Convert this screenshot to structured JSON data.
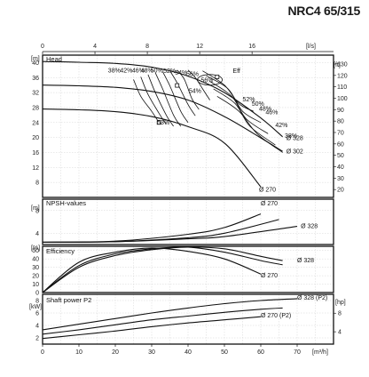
{
  "header": {
    "model": "NRC4 65/315"
  },
  "chart_data": [
    {
      "type": "line",
      "title": "Head",
      "unit_left": "[m]",
      "unit_right": "[ft]",
      "top_axis": {
        "unit": "[l/s]",
        "ticks": [
          "0",
          "4",
          "8",
          "12",
          "16"
        ]
      },
      "ylim": [
        4,
        42
      ],
      "yticks": [
        8,
        12,
        16,
        20,
        24,
        28,
        32,
        36,
        40
      ],
      "ft_ticks": [
        20,
        30,
        40,
        50,
        60,
        70,
        80,
        90,
        100,
        110,
        120,
        130
      ],
      "series": [
        {
          "name": "Ø 328",
          "x": [
            0,
            10,
            20,
            30,
            40,
            50,
            60,
            66
          ],
          "y": [
            40.3,
            40.1,
            39.8,
            38.8,
            36.4,
            32.0,
            25.2,
            20.2
          ]
        },
        {
          "name": "Ø 302",
          "x": [
            0,
            10,
            20,
            30,
            40,
            50,
            60,
            66
          ],
          "y": [
            34.0,
            33.8,
            33.4,
            32.3,
            30.0,
            25.6,
            19.9,
            16.3
          ]
        },
        {
          "name": "Ø 270",
          "x": [
            0,
            10,
            20,
            30,
            40,
            50,
            60
          ],
          "y": [
            27.6,
            27.4,
            26.9,
            25.6,
            22.9,
            18.5,
            6.8
          ]
        }
      ],
      "labels": {
        "eff": "Eff",
        "d328": "Ø 328",
        "d302": "Ø 302",
        "d270": "Ø 270",
        "eff_pct": [
          "38%",
          "42%",
          "46%",
          "48%",
          "50%",
          "52%",
          "54%",
          "56%",
          "56%",
          "54%",
          "53%",
          "52%",
          "50%",
          "48%",
          "46%",
          "42%",
          "38%"
        ]
      }
    },
    {
      "type": "line",
      "title": "NPSH-values",
      "unit": "[m]",
      "ylim": [
        2,
        10
      ],
      "yticks": [
        4,
        8
      ],
      "series": [
        {
          "name": "Ø 270",
          "x": [
            0,
            20,
            40,
            50,
            60
          ],
          "y": [
            2.4,
            2.6,
            3.8,
            5.0,
            7.4
          ]
        },
        {
          "name": "Ø 302",
          "x": [
            0,
            20,
            40,
            50,
            65
          ],
          "y": [
            2.4,
            2.5,
            3.2,
            4.0,
            6.4
          ]
        },
        {
          "name": "Ø 328",
          "x": [
            0,
            20,
            40,
            50,
            70
          ],
          "y": [
            2.4,
            2.5,
            3.0,
            3.4,
            5.2
          ]
        }
      ],
      "labels": {
        "d270": "Ø 270",
        "d328": "Ø 328"
      }
    },
    {
      "type": "line",
      "title": "Efficiency",
      "unit": "[%]",
      "ylim": [
        0,
        55
      ],
      "yticks": [
        0,
        10,
        20,
        30,
        40,
        50
      ],
      "series": [
        {
          "name": "Ø 328",
          "x": [
            0,
            10,
            20,
            30,
            40,
            50,
            60,
            66
          ],
          "y": [
            0,
            30,
            44,
            51,
            54,
            52,
            43,
            38
          ]
        },
        {
          "name": "Ø 302",
          "x": [
            0,
            10,
            20,
            30,
            40,
            50,
            60,
            66
          ],
          "y": [
            0,
            32,
            46,
            52,
            54,
            48,
            38,
            33
          ]
        },
        {
          "name": "Ø 270",
          "x": [
            0,
            10,
            20,
            30,
            40,
            50,
            60
          ],
          "y": [
            0,
            36,
            48,
            53,
            49,
            40,
            22
          ]
        }
      ],
      "labels": {
        "d328": "Ø 328",
        "d270": "Ø 270"
      }
    },
    {
      "type": "line",
      "title": "Shaft power P2",
      "unit_left": "[kW]",
      "unit_right": "[hp]",
      "ylim": [
        1,
        9
      ],
      "yticks": [
        2,
        4,
        6,
        8
      ],
      "hp_ticks": [
        4,
        8
      ],
      "series": [
        {
          "name": "Ø 328 (P2)",
          "x": [
            0,
            10,
            20,
            30,
            40,
            50,
            60,
            70
          ],
          "y": [
            3.3,
            4.2,
            5.1,
            6.0,
            6.8,
            7.5,
            8.0,
            8.3
          ]
        },
        {
          "name": "Ø 302",
          "x": [
            0,
            10,
            20,
            30,
            40,
            50,
            60,
            66
          ],
          "y": [
            2.6,
            3.3,
            4.1,
            4.9,
            5.5,
            6.1,
            6.6,
            6.8
          ]
        },
        {
          "name": "Ø 270 (P2)",
          "x": [
            0,
            10,
            20,
            30,
            40,
            50,
            60
          ],
          "y": [
            1.9,
            2.5,
            3.1,
            3.8,
            4.4,
            4.9,
            5.4
          ]
        }
      ],
      "labels": {
        "d328": "Ø 328 (P2)",
        "d270": "Ø 270 (P2)"
      },
      "xaxis": {
        "unit": "[m³/h]",
        "ticks": [
          "0",
          "10",
          "20",
          "30",
          "40",
          "50",
          "60",
          "70"
        ]
      }
    }
  ]
}
